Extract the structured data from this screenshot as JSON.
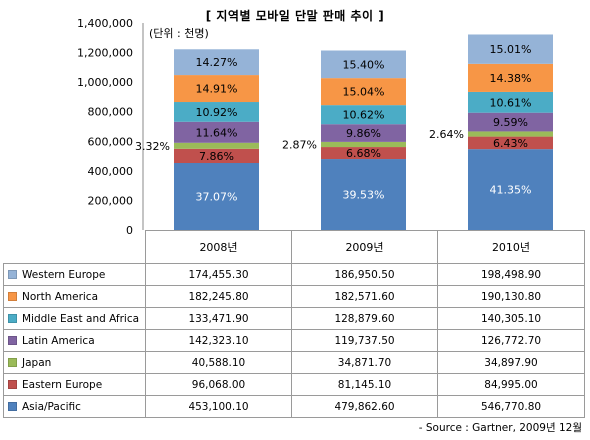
{
  "title": "[ 지역별 모바일 단말 판매 추이 ]",
  "unit_label": "(단위 : 천명)",
  "source": "- Source : Gartner,  2009년 12월",
  "chart_data": {
    "type": "bar",
    "stacked": true,
    "title": "[ 지역별 모바일 단말 판매 추이 ]",
    "unit": "(단위 : 천명)",
    "categories": [
      "2008년",
      "2009년",
      "2010년"
    ],
    "ylim": [
      0,
      1400000
    ],
    "yticks": [
      "0",
      "200,000",
      "400,000",
      "600,000",
      "800,000",
      "1,000,000",
      "1,200,000",
      "1,400,000"
    ],
    "ytick_values": [
      0,
      200000,
      400000,
      600000,
      800000,
      1000000,
      1200000,
      1400000
    ],
    "legend_position": "table-left",
    "series": [
      {
        "name": "Asia/Pacific",
        "color": "#4f81bd",
        "values": [
          453100.1,
          479862.6,
          546770.8
        ],
        "labels": [
          "453,100.10",
          "479,862.60",
          "546,770.80"
        ],
        "shares": [
          "37.07%",
          "39.53%",
          "41.35%"
        ]
      },
      {
        "name": "Eastern Europe",
        "color": "#c0504d",
        "values": [
          96068.0,
          81145.1,
          84995.0
        ],
        "labels": [
          "96,068.00",
          "81,145.10",
          "84,995.00"
        ],
        "shares": [
          "7.86%",
          "6.68%",
          "6.43%"
        ]
      },
      {
        "name": "Japan",
        "color": "#9bbb59",
        "values": [
          40588.1,
          34871.7,
          34897.9
        ],
        "labels": [
          "40,588.10",
          "34,871.70",
          "34,897.90"
        ],
        "shares": [
          "3.32%",
          "2.87%",
          "2.64%"
        ]
      },
      {
        "name": "Latin America",
        "color": "#8064a2",
        "values": [
          142323.1,
          119737.5,
          126772.7
        ],
        "labels": [
          "142,323.10",
          "119,737.50",
          "126,772.70"
        ],
        "shares": [
          "11.64%",
          "9.86%",
          "9.59%"
        ]
      },
      {
        "name": "Middle East and Africa",
        "color": "#4bacc6",
        "values": [
          133471.9,
          128879.6,
          140305.1
        ],
        "labels": [
          "133,471.90",
          "128,879.60",
          "140,305.10"
        ],
        "shares": [
          "10.92%",
          "10.62%",
          "10.61%"
        ]
      },
      {
        "name": "North America",
        "color": "#f79646",
        "values": [
          182245.8,
          182571.6,
          190130.8
        ],
        "labels": [
          "182,245.80",
          "182,571.60",
          "190,130.80"
        ],
        "shares": [
          "14.91%",
          "15.04%",
          "14.38%"
        ]
      },
      {
        "name": "Western Europe",
        "color": "#95b3d7",
        "values": [
          174455.3,
          186950.5,
          198498.9
        ],
        "labels": [
          "174,455.30",
          "186,950.50",
          "198,498.90"
        ],
        "shares": [
          "14.27%",
          "15.40%",
          "15.01%"
        ]
      }
    ],
    "table_row_order": [
      "Western Europe",
      "North America",
      "Middle East and Africa",
      "Latin America",
      "Japan",
      "Eastern Europe",
      "Asia/Pacific"
    ]
  }
}
